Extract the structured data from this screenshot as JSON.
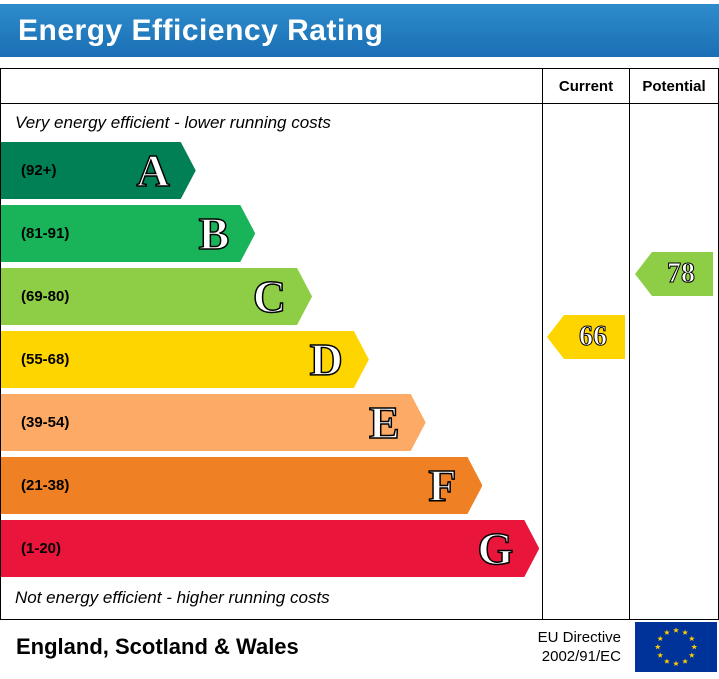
{
  "chart_data": {
    "type": "bar",
    "title": "Energy Efficiency Rating",
    "top_note": "Very energy efficient - lower running costs",
    "bottom_note": "Not energy efficient - higher running costs",
    "columns": {
      "current": "Current",
      "potential": "Potential"
    },
    "bands": [
      {
        "letter": "A",
        "range": "(92+)",
        "color": "#008054",
        "width_pct": 36
      },
      {
        "letter": "B",
        "range": "(81-91)",
        "color": "#19b459",
        "width_pct": 47
      },
      {
        "letter": "C",
        "range": "(69-80)",
        "color": "#8dce46",
        "width_pct": 57.5
      },
      {
        "letter": "D",
        "range": "(55-68)",
        "color": "#ffd500",
        "width_pct": 68
      },
      {
        "letter": "E",
        "range": "(39-54)",
        "color": "#fcaa65",
        "width_pct": 78.5
      },
      {
        "letter": "F",
        "range": "(21-38)",
        "color": "#ef8023",
        "width_pct": 89
      },
      {
        "letter": "G",
        "range": "(1-20)",
        "color": "#e9153b",
        "width_pct": 99.5
      }
    ],
    "current": {
      "value": 66,
      "band": "D",
      "color": "#ffd500"
    },
    "potential": {
      "value": 78,
      "band": "C",
      "color": "#8dce46"
    }
  },
  "footer": {
    "region": "England, Scotland & Wales",
    "directive_line1": "EU Directive",
    "directive_line2": "2002/91/EC"
  }
}
